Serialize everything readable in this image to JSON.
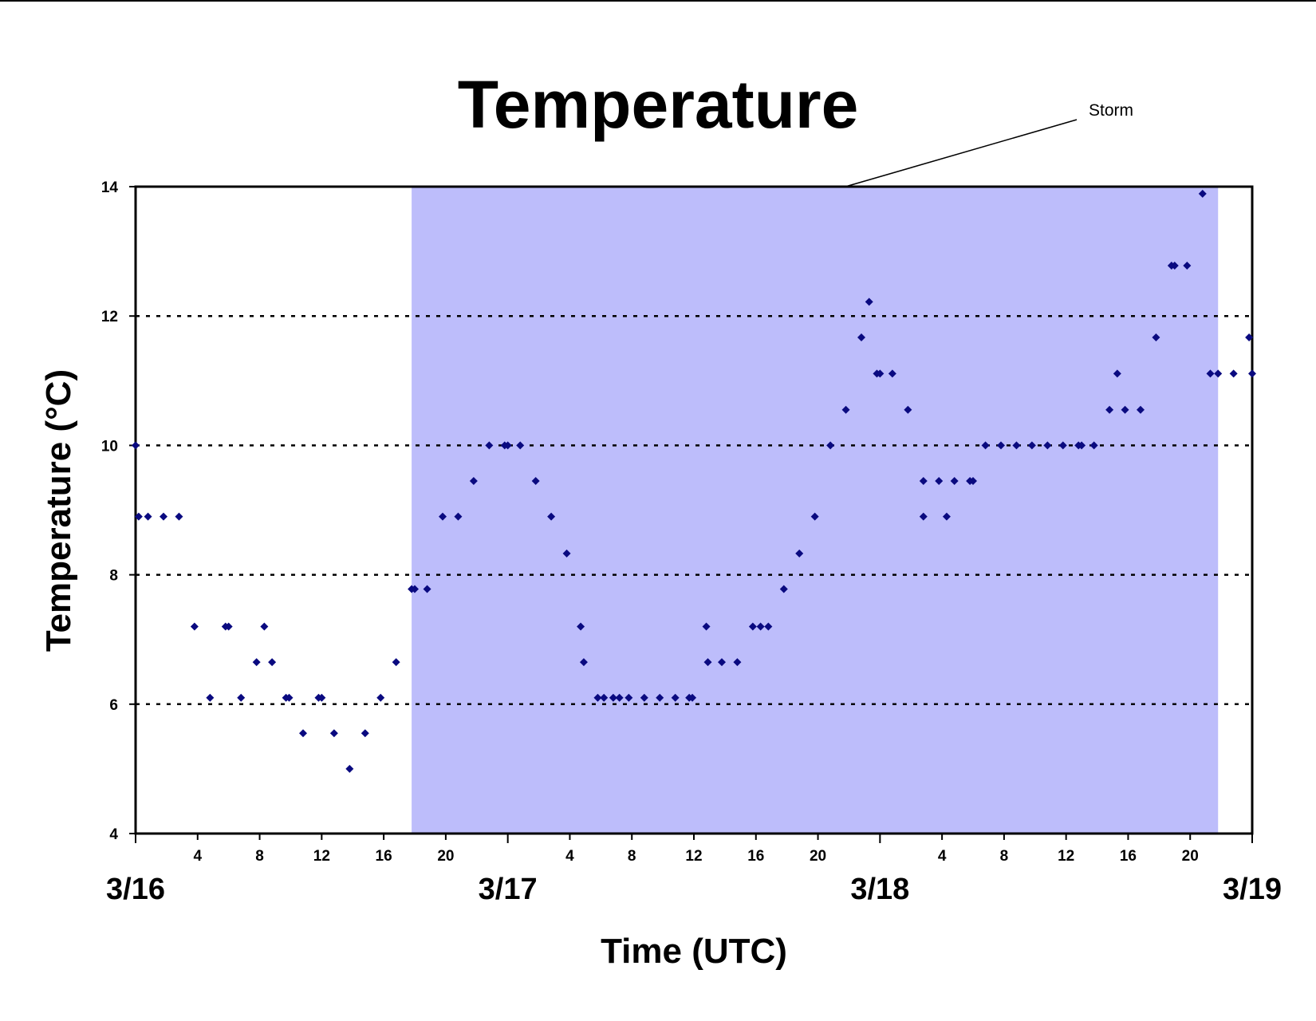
{
  "chart_data": {
    "type": "scatter",
    "title": "Temperature",
    "xlabel": "Time (UTC)",
    "ylabel": "Temperature (°C)",
    "ylim": [
      4,
      14
    ],
    "yticks": [
      4,
      6,
      8,
      10,
      12,
      14
    ],
    "xlim_hours": [
      0,
      72
    ],
    "x_unit": "hours since 3/16 00:00 UTC",
    "x_hour_tick_labels": [
      {
        "hour": 4,
        "label": "4"
      },
      {
        "hour": 8,
        "label": "8"
      },
      {
        "hour": 12,
        "label": "12"
      },
      {
        "hour": 16,
        "label": "16"
      },
      {
        "hour": 20,
        "label": "20"
      },
      {
        "hour": 28,
        "label": "4"
      },
      {
        "hour": 32,
        "label": "8"
      },
      {
        "hour": 36,
        "label": "12"
      },
      {
        "hour": 40,
        "label": "16"
      },
      {
        "hour": 44,
        "label": "20"
      },
      {
        "hour": 52,
        "label": "4"
      },
      {
        "hour": 56,
        "label": "8"
      },
      {
        "hour": 60,
        "label": "12"
      },
      {
        "hour": 64,
        "label": "16"
      },
      {
        "hour": 68,
        "label": "20"
      }
    ],
    "x_day_labels": [
      {
        "hour": 0,
        "label": "3/16"
      },
      {
        "hour": 24,
        "label": "3/17"
      },
      {
        "hour": 48,
        "label": "3/18"
      },
      {
        "hour": 72,
        "label": "3/19"
      }
    ],
    "grid": "horizontal dotted at 6, 8, 10, 12",
    "shaded_region": {
      "label": "Storm",
      "x_start": 17.8,
      "x_end": 69.8,
      "color": "#bdbdfb"
    },
    "marker_color": "#0a0a80",
    "marker": "diamond",
    "series": [
      {
        "points": [
          [
            0.0,
            10.0
          ],
          [
            0.2,
            8.9
          ],
          [
            0.8,
            8.9
          ],
          [
            1.8,
            8.9
          ],
          [
            2.8,
            8.9
          ],
          [
            3.8,
            7.2
          ],
          [
            4.8,
            6.1
          ],
          [
            5.8,
            7.2
          ],
          [
            6.0,
            7.2
          ],
          [
            6.8,
            6.1
          ],
          [
            7.8,
            6.65
          ],
          [
            8.3,
            7.2
          ],
          [
            8.8,
            6.65
          ],
          [
            9.7,
            6.1
          ],
          [
            9.9,
            6.1
          ],
          [
            10.8,
            5.55
          ],
          [
            11.8,
            6.1
          ],
          [
            12.0,
            6.1
          ],
          [
            12.8,
            5.55
          ],
          [
            13.8,
            5.0
          ],
          [
            14.8,
            5.55
          ],
          [
            15.8,
            6.1
          ],
          [
            16.8,
            6.65
          ],
          [
            17.8,
            7.78
          ],
          [
            18.0,
            7.78
          ],
          [
            18.8,
            7.78
          ],
          [
            19.8,
            8.9
          ],
          [
            20.8,
            8.9
          ],
          [
            21.8,
            9.45
          ],
          [
            22.8,
            10.0
          ],
          [
            23.8,
            10.0
          ],
          [
            24.0,
            10.0
          ],
          [
            24.8,
            10.0
          ],
          [
            25.8,
            9.45
          ],
          [
            26.8,
            8.9
          ],
          [
            27.8,
            8.33
          ],
          [
            28.7,
            7.2
          ],
          [
            28.9,
            6.65
          ],
          [
            29.8,
            6.1
          ],
          [
            30.2,
            6.1
          ],
          [
            30.8,
            6.1
          ],
          [
            31.2,
            6.1
          ],
          [
            31.8,
            6.1
          ],
          [
            32.8,
            6.1
          ],
          [
            33.8,
            6.1
          ],
          [
            34.8,
            6.1
          ],
          [
            35.7,
            6.1
          ],
          [
            35.9,
            6.1
          ],
          [
            36.8,
            7.2
          ],
          [
            36.9,
            6.65
          ],
          [
            37.8,
            6.65
          ],
          [
            38.8,
            6.65
          ],
          [
            39.8,
            7.2
          ],
          [
            40.3,
            7.2
          ],
          [
            40.8,
            7.2
          ],
          [
            41.8,
            7.78
          ],
          [
            42.8,
            8.33
          ],
          [
            43.8,
            8.9
          ],
          [
            44.8,
            10.0
          ],
          [
            45.8,
            10.55
          ],
          [
            46.8,
            11.67
          ],
          [
            47.3,
            12.22
          ],
          [
            47.8,
            11.11
          ],
          [
            48.0,
            11.11
          ],
          [
            48.8,
            11.11
          ],
          [
            49.8,
            10.55
          ],
          [
            50.8,
            8.9
          ],
          [
            50.8,
            9.45
          ],
          [
            51.8,
            9.45
          ],
          [
            52.3,
            8.9
          ],
          [
            52.8,
            9.45
          ],
          [
            53.8,
            9.45
          ],
          [
            54.0,
            9.45
          ],
          [
            54.8,
            10.0
          ],
          [
            55.8,
            10.0
          ],
          [
            56.8,
            10.0
          ],
          [
            57.8,
            10.0
          ],
          [
            58.8,
            10.0
          ],
          [
            59.8,
            10.0
          ],
          [
            60.8,
            10.0
          ],
          [
            61.0,
            10.0
          ],
          [
            61.8,
            10.0
          ],
          [
            62.8,
            10.55
          ],
          [
            63.3,
            11.11
          ],
          [
            63.8,
            10.55
          ],
          [
            64.8,
            10.55
          ],
          [
            65.8,
            11.67
          ],
          [
            66.8,
            12.78
          ],
          [
            67.0,
            12.78
          ],
          [
            67.8,
            12.78
          ],
          [
            68.8,
            13.89
          ],
          [
            69.3,
            11.11
          ],
          [
            69.8,
            11.11
          ],
          [
            70.8,
            11.11
          ],
          [
            71.8,
            11.67
          ],
          [
            72.0,
            11.11
          ]
        ]
      }
    ]
  }
}
